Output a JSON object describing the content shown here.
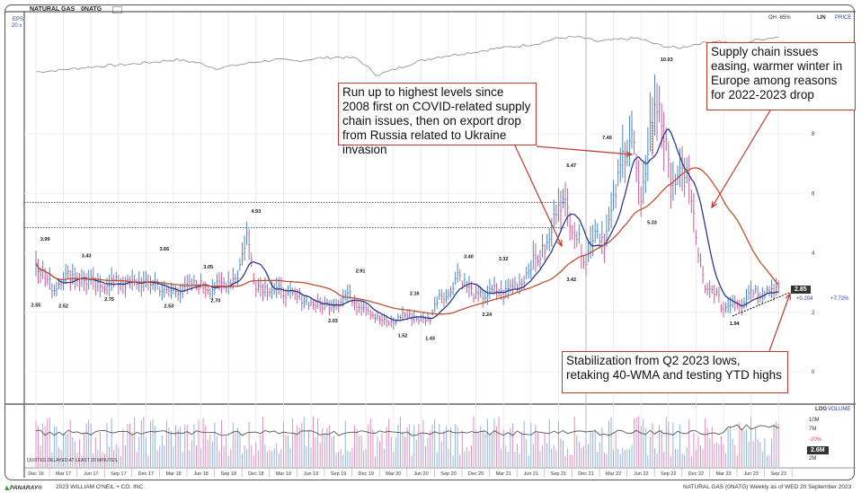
{
  "header": {
    "title": "NATURAL GAS",
    "symbol": "0NATG",
    "eps_label": "EPS",
    "eps_sub": "20 x",
    "rs_label": "OH -65%",
    "scale": "LIN",
    "mode": "PRICE"
  },
  "price_tag": {
    "last": "2.85",
    "change": "+0.204",
    "pct": "+7.72%"
  },
  "volume_panel": {
    "scale": "LOG",
    "label": "VOLUME",
    "ticks": [
      "10M",
      "7M",
      "2M"
    ],
    "pct": "-20%",
    "last": "2.6M",
    "delay_note": "QUOTES DELAYED AT LEAST 20 MINUTES."
  },
  "annotations": [
    "Run up to highest levels since 2008 first on COVID-related supply chain issues, then on export drop from Russia related to Ukraine invasion",
    "Supply chain issues easing, warmer winter in Europe among reasons for 2022-2023 drop",
    "Stabilization from Q2 2023 lows, retaking 40-WMA and testing YTD highs"
  ],
  "footer": {
    "brand": "PANARAY®",
    "copyright": "2023 WILLIAM O'NEIL + CO. INC.",
    "asof": "NATURAL GAS (0NATG) Weekly as of WED 20 September 2023"
  },
  "colors": {
    "up": "#4a86c8",
    "down": "#cc5a96",
    "ma10": "#2b3a8c",
    "ma40": "#c0502e",
    "rs": "#888888",
    "annotation": "#c0392b"
  },
  "chart_data": {
    "type": "bar",
    "frequency": "weekly (approximated by monthly closes)",
    "scale": "linear",
    "ylim": [
      0,
      11
    ],
    "yticks": [
      "0",
      "2",
      "4",
      "6",
      "8"
    ],
    "xticks": [
      "Dec 16",
      "Mar 17",
      "Jun 17",
      "Sep 17",
      "Dec 17",
      "Mar 18",
      "Jun 18",
      "Sep 18",
      "Dec 18",
      "Mar 19",
      "Jun 19",
      "Sep 19",
      "Dec 19",
      "Mar 20",
      "Jun 20",
      "Sep 20",
      "Dec 20",
      "Mar 21",
      "Jun 21",
      "Sep 21",
      "Dec 21",
      "Mar 22",
      "Jun 22",
      "Sep 22",
      "Dec 22",
      "Mar 23",
      "Jun 23",
      "Sep 23"
    ],
    "start": "2016-12",
    "monthly_close": [
      3.72,
      3.19,
      2.77,
      3.19,
      3.27,
      3.07,
      3.04,
      2.78,
      3.04,
      3.01,
      2.95,
      3.02,
      2.95,
      3.0,
      2.67,
      2.73,
      2.76,
      2.95,
      2.92,
      2.78,
      2.93,
      3.01,
      3.26,
      4.61,
      2.94,
      2.81,
      2.81,
      2.66,
      2.58,
      2.45,
      2.31,
      2.23,
      2.28,
      2.33,
      2.64,
      2.28,
      2.19,
      1.84,
      1.68,
      1.64,
      1.95,
      1.85,
      1.75,
      1.8,
      2.63,
      2.53,
      3.35,
      2.88,
      2.54,
      2.56,
      2.77,
      2.61,
      2.93,
      2.99,
      3.65,
      3.91,
      4.38,
      5.87,
      5.43,
      4.57,
      3.73,
      4.87,
      4.4,
      5.64,
      7.24,
      8.14,
      5.42,
      8.23,
      9.13,
      6.77,
      6.36,
      6.9,
      4.48,
      2.68,
      2.76,
      2.1,
      2.41,
      2.27,
      2.8,
      2.64,
      2.77,
      2.85
    ],
    "moving_averages": [
      "10-week",
      "40-week"
    ],
    "price_labels": [
      {
        "t": 0,
        "v": "2.55",
        "low": true
      },
      {
        "t": 1,
        "v": "3.99"
      },
      {
        "t": 3,
        "v": "2.52",
        "low": true
      },
      {
        "t": 5.5,
        "v": "3.43"
      },
      {
        "t": 8,
        "v": "2.75",
        "low": true
      },
      {
        "t": 14,
        "v": "3.66"
      },
      {
        "t": 14.5,
        "v": "2.53",
        "low": true
      },
      {
        "t": 18.8,
        "v": "3.05"
      },
      {
        "t": 19.6,
        "v": "2.70",
        "low": true
      },
      {
        "t": 24,
        "v": "4.93"
      },
      {
        "t": 32.4,
        "v": "2.03",
        "low": true
      },
      {
        "t": 35.4,
        "v": "2.91"
      },
      {
        "t": 40,
        "v": "1.52",
        "low": true
      },
      {
        "t": 41.3,
        "v": "2.16"
      },
      {
        "t": 43,
        "v": "1.43",
        "low": true
      },
      {
        "t": 47.2,
        "v": "3.40"
      },
      {
        "t": 49.2,
        "v": "2.24",
        "low": true
      },
      {
        "t": 51,
        "v": "3.32"
      },
      {
        "t": 58.4,
        "v": "6.47"
      },
      {
        "t": 58.4,
        "v": "3.42",
        "low": true
      },
      {
        "t": 62.3,
        "v": "7.40"
      },
      {
        "t": 67.2,
        "v": "5.33",
        "low": true
      },
      {
        "t": 68.8,
        "v": "10.03"
      },
      {
        "t": 76.2,
        "v": "1.94",
        "low": true
      }
    ],
    "reference_levels": [
      5.7,
      4.85
    ],
    "rs_line_index": [
      40,
      42,
      45,
      48,
      50,
      52,
      55,
      58,
      54,
      45,
      50,
      55,
      58,
      56,
      60,
      62,
      60,
      35,
      45,
      55,
      62,
      66,
      70,
      75,
      78,
      82,
      90,
      92,
      85,
      88,
      90,
      80,
      75,
      82,
      86,
      80,
      88,
      92
    ]
  }
}
